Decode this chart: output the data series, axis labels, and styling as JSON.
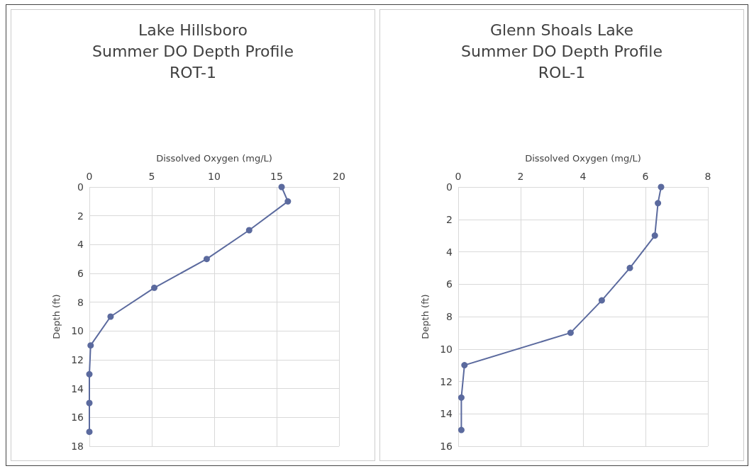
{
  "chart_data": [
    {
      "type": "line",
      "title": "Lake Hillsboro\nSummer DO Depth Profile\nROT-1",
      "xlabel": "Dissolved Oxygen (mg/L)",
      "ylabel": "Depth (ft)",
      "series": [
        {
          "color": "#5b6a9e",
          "x": [
            15.4,
            15.9,
            12.8,
            9.4,
            5.2,
            1.7,
            0.1,
            0,
            0,
            0
          ],
          "values": [
            0,
            1,
            3,
            5,
            7,
            9,
            11,
            13,
            15,
            17
          ]
        }
      ],
      "xlim": [
        0,
        20
      ],
      "xticks": [
        0,
        5,
        10,
        15,
        20
      ],
      "ylim": [
        18,
        0
      ],
      "yticks": [
        0,
        2,
        4,
        6,
        8,
        10,
        12,
        14,
        16,
        18
      ],
      "grid": true,
      "marker": "circle"
    },
    {
      "type": "line",
      "title": "Glenn Shoals Lake\nSummer DO Depth Profile\nROL-1",
      "xlabel": "Dissolved Oxygen (mg/L)",
      "ylabel": "Depth (ft)",
      "series": [
        {
          "color": "#5b6a9e",
          "x": [
            6.5,
            6.4,
            6.3,
            5.5,
            4.6,
            3.6,
            0.2,
            0.1,
            0.1
          ],
          "values": [
            0,
            1,
            3,
            5,
            7,
            9,
            11,
            13,
            15
          ]
        }
      ],
      "xlim": [
        0,
        8
      ],
      "xticks": [
        0,
        2,
        4,
        6,
        8
      ],
      "ylim": [
        16,
        0
      ],
      "yticks": [
        0,
        2,
        4,
        6,
        8,
        10,
        12,
        14,
        16
      ],
      "grid": true,
      "marker": "circle"
    }
  ]
}
